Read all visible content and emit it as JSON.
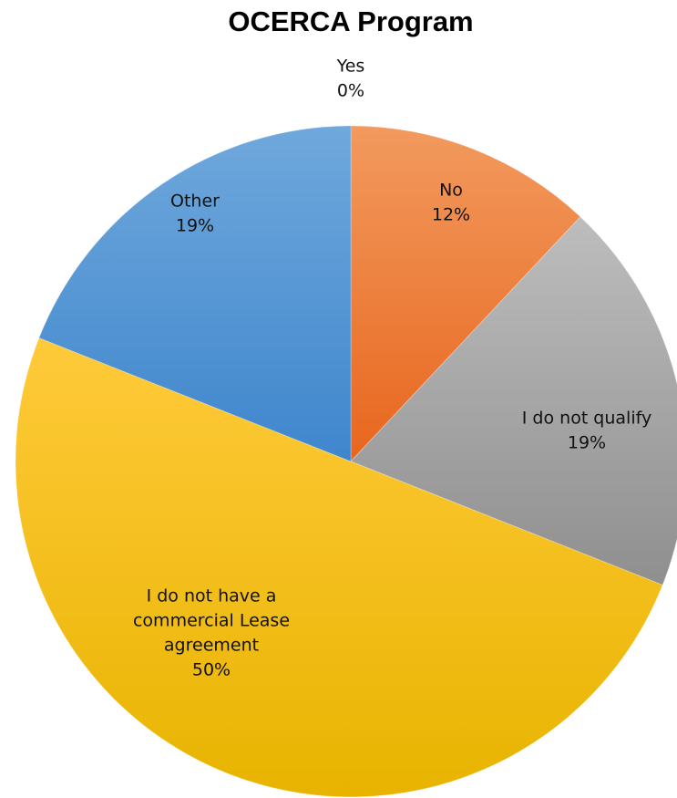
{
  "chart_data": {
    "type": "pie",
    "title": "OCERCA Program",
    "slices": [
      {
        "label": "Yes",
        "value": 0,
        "display": "0%",
        "color": "#5b9bd5"
      },
      {
        "label": "No",
        "value": 12,
        "display": "12%",
        "color": "#ed7d31"
      },
      {
        "label": "I do not qualify",
        "value": 19,
        "display": "19%",
        "color": "#a5a5a5"
      },
      {
        "label": "I do not have a commercial Lease agreement",
        "value": 50,
        "display": "50%",
        "color": "#ffc000"
      },
      {
        "label": "Other",
        "value": 19,
        "display": "19%",
        "color": "#5b9bd5"
      }
    ],
    "legend": "none",
    "data_labels": "category name and percentage"
  }
}
